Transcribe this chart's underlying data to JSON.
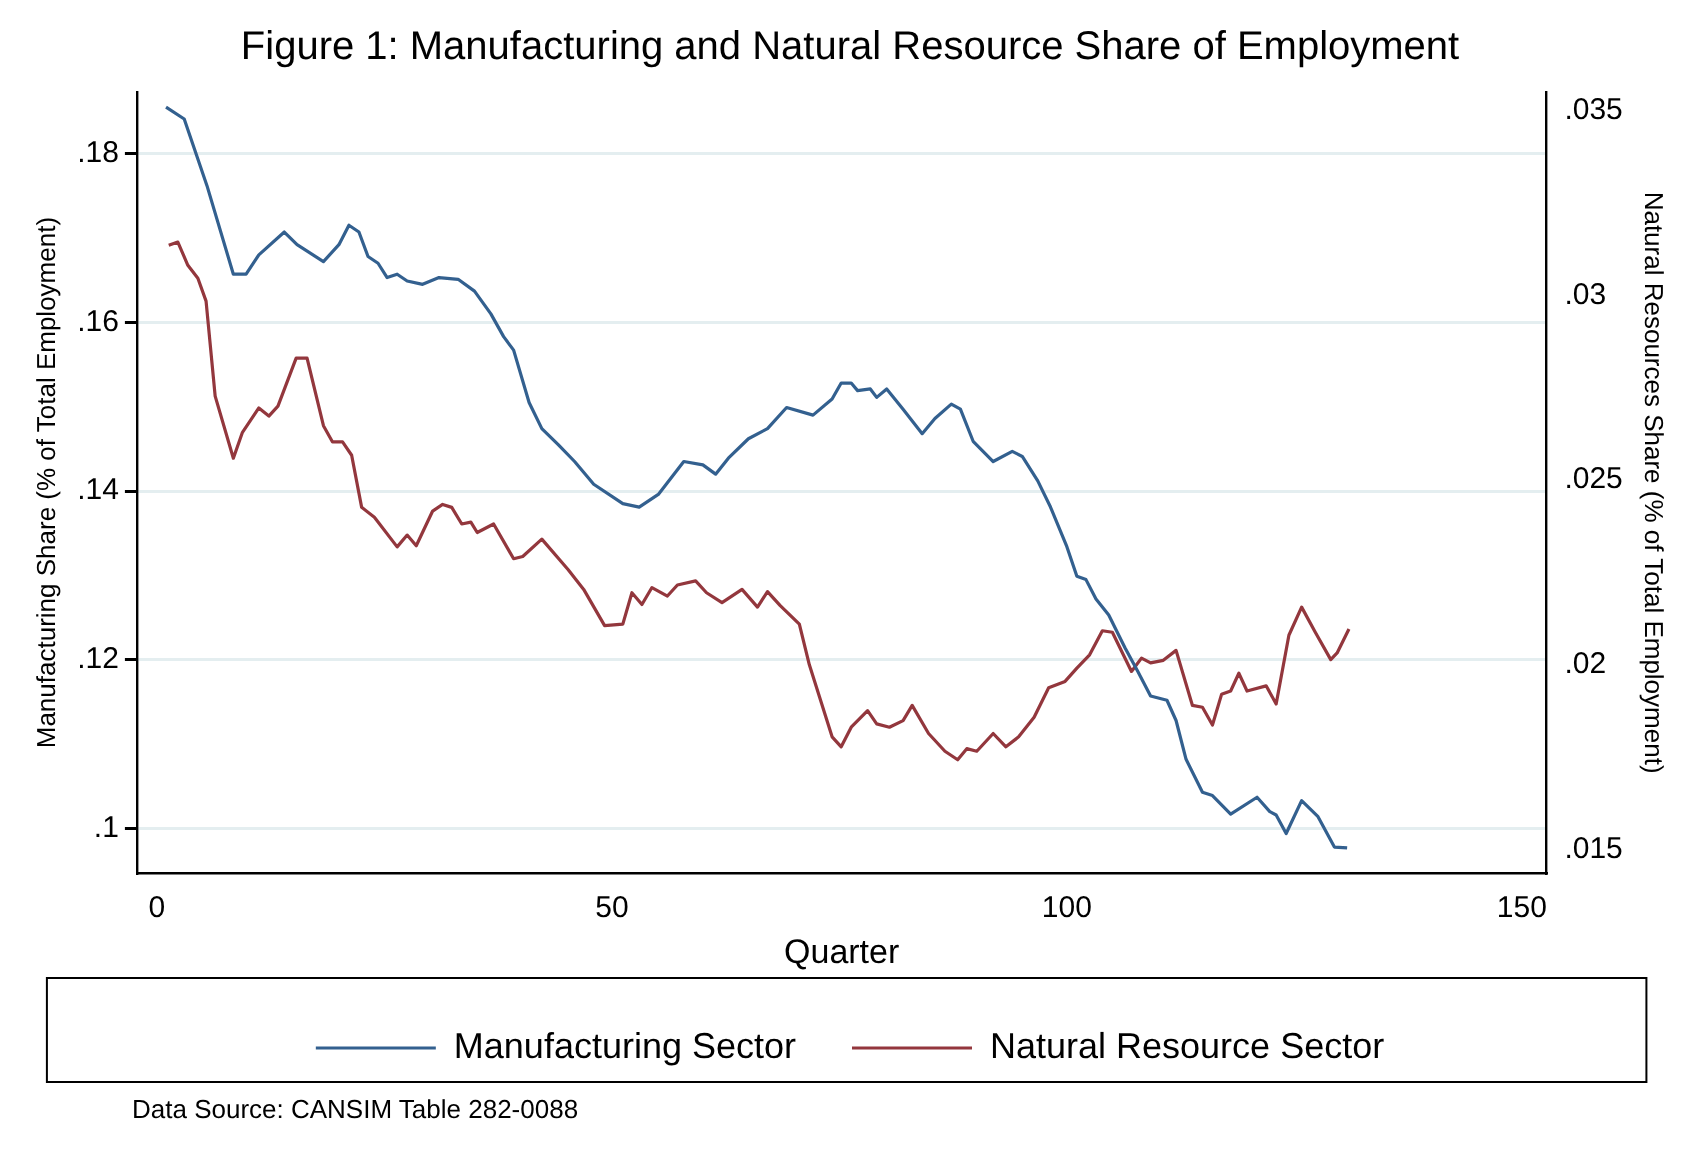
{
  "chart_data": {
    "type": "line",
    "title": "Figure 1: Manufacturing and Natural Resource Share of Employment",
    "xlabel": "Quarter",
    "ylabel": "Manufacturing Share (% of Total Employment)",
    "y2label": "Natural Resources Share (% of Total Employment)",
    "xlim": [
      -2.2,
      152.7
    ],
    "xticks": [
      0,
      50,
      100,
      150
    ],
    "ylim": [
      0.0947,
      0.1873
    ],
    "yticks": [
      {
        "value": 0.1,
        "label": ".1"
      },
      {
        "value": 0.12,
        "label": ".12"
      },
      {
        "value": 0.14,
        "label": ".14"
      },
      {
        "value": 0.16,
        "label": ".16"
      },
      {
        "value": 0.18,
        "label": ".18"
      }
    ],
    "y2lim": [
      0.01436,
      0.0355
    ],
    "y2ticks": [
      {
        "value": 0.015,
        "label": ".015"
      },
      {
        "value": 0.02,
        "label": ".02"
      },
      {
        "value": 0.025,
        "label": ".025"
      },
      {
        "value": 0.03,
        "label": ".03"
      },
      {
        "value": 0.035,
        "label": ".035"
      }
    ],
    "grid": "y",
    "legend": "bottom",
    "marker": "none",
    "line_style": "solid",
    "annotations": [
      "Data Source: CANSIM Table 282-0088"
    ],
    "series": [
      {
        "name": "Manufacturing Sector",
        "color": "#33608f",
        "x": [
          1,
          3,
          5.5,
          8.4,
          9.8,
          11.2,
          14,
          15.4,
          18.3,
          20,
          21.1,
          22.2,
          23.2,
          24.3,
          25.3,
          26.4,
          27.5,
          29.2,
          31,
          33.1,
          34.9,
          36.7,
          38.1,
          39.2,
          40.9,
          42.3,
          44.1,
          45.9,
          48,
          51.2,
          53,
          55.1,
          57.9,
          60,
          61.4,
          62.8,
          65,
          67.1,
          69.2,
          72.1,
          74.2,
          75.2,
          76.3,
          77,
          78.4,
          79.1,
          80.2,
          82,
          84.1,
          85.5,
          87.3,
          88.3,
          89.7,
          91.9,
          94,
          95.1,
          96.8,
          98.2,
          100,
          101.1,
          102.1,
          103.2,
          104.6,
          106.4,
          107.8,
          109.2,
          111,
          112,
          113.1,
          114.9,
          116,
          118,
          120.9,
          122.3,
          123,
          124.1,
          125.8,
          127.6,
          129.4,
          130.8
        ],
        "values": [
          0.1855,
          0.1841,
          0.1762,
          0.1657,
          0.1657,
          0.168,
          0.1707,
          0.1692,
          0.1672,
          0.1692,
          0.1715,
          0.1707,
          0.1678,
          0.167,
          0.1653,
          0.1657,
          0.1649,
          0.1645,
          0.1653,
          0.1651,
          0.1637,
          0.161,
          0.1583,
          0.1567,
          0.1505,
          0.1474,
          0.1455,
          0.1435,
          0.1408,
          0.1385,
          0.1381,
          0.1396,
          0.1435,
          0.1431,
          0.142,
          0.1439,
          0.1462,
          0.1474,
          0.1499,
          0.149,
          0.1509,
          0.1528,
          0.1528,
          0.1519,
          0.1521,
          0.1511,
          0.1521,
          0.1497,
          0.1468,
          0.1486,
          0.1503,
          0.1497,
          0.1459,
          0.1435,
          0.1447,
          0.1441,
          0.1412,
          0.1381,
          0.1334,
          0.1299,
          0.1295,
          0.1272,
          0.1253,
          0.1214,
          0.1186,
          0.1157,
          0.1152,
          0.1128,
          0.1082,
          0.1043,
          0.1039,
          0.1017,
          0.1037,
          0.102,
          0.1016,
          0.0994,
          0.1033,
          0.1014,
          0.0978,
          0.0977
        ]
      },
      {
        "name": "Natural Resource Sector",
        "color": "#93373d",
        "axis": "y2",
        "x": [
          1.3,
          2.3,
          3.4,
          4.5,
          5.4,
          6.4,
          8.4,
          9.4,
          11.2,
          12.3,
          13.3,
          15.3,
          16.5,
          18.3,
          19.3,
          20.4,
          21.4,
          22.5,
          23.9,
          26.4,
          27.5,
          28.5,
          30.3,
          31.4,
          32.4,
          33.5,
          34.5,
          35.2,
          37,
          39.2,
          40.2,
          42.3,
          45.2,
          46.9,
          49.2,
          51.2,
          52.2,
          53.3,
          54.4,
          56.1,
          57.2,
          59.2,
          60.4,
          62.1,
          64.3,
          66,
          67.1,
          68.5,
          70.6,
          71.7,
          74.2,
          75.2,
          76.3,
          78.1,
          79.1,
          80.5,
          82,
          83,
          84.8,
          86.6,
          88,
          89,
          90.1,
          91.9,
          93.3,
          94.7,
          96.4,
          98,
          99.8,
          101.1,
          102.5,
          103.9,
          105,
          107.1,
          108.2,
          109.2,
          110.6,
          112,
          113.8,
          114.9,
          116,
          117,
          118,
          118.9,
          119.8,
          121.9,
          123,
          124.4,
          125.8,
          127.3,
          129,
          129.7,
          131
        ],
        "values": [
          0.03135,
          0.03144,
          0.03081,
          0.03046,
          0.02984,
          0.02727,
          0.02559,
          0.02629,
          0.02695,
          0.02673,
          0.027,
          0.0283,
          0.0283,
          0.02647,
          0.02603,
          0.02603,
          0.02567,
          0.02426,
          0.02399,
          0.02319,
          0.02351,
          0.02322,
          0.02416,
          0.02434,
          0.02426,
          0.02381,
          0.02386,
          0.02358,
          0.02381,
          0.02287,
          0.02293,
          0.0234,
          0.02257,
          0.02204,
          0.02106,
          0.0211,
          0.02195,
          0.02163,
          0.02209,
          0.02186,
          0.02216,
          0.02227,
          0.02195,
          0.02168,
          0.02204,
          0.02156,
          0.02198,
          0.0216,
          0.0211,
          0.02,
          0.01805,
          0.01778,
          0.01831,
          0.01876,
          0.0184,
          0.01831,
          0.01849,
          0.0189,
          0.01814,
          0.01766,
          0.01743,
          0.01773,
          0.01766,
          0.01814,
          0.01778,
          0.01805,
          0.01858,
          0.01938,
          0.01955,
          0.01991,
          0.02027,
          0.02092,
          0.02088,
          0.01982,
          0.02018,
          0.02005,
          0.02012,
          0.02039,
          0.0189,
          0.01885,
          0.01837,
          0.0192,
          0.01929,
          0.01977,
          0.01929,
          0.01943,
          0.01894,
          0.0208,
          0.02156,
          0.02088,
          0.02014,
          0.02032,
          0.02097
        ]
      }
    ]
  }
}
